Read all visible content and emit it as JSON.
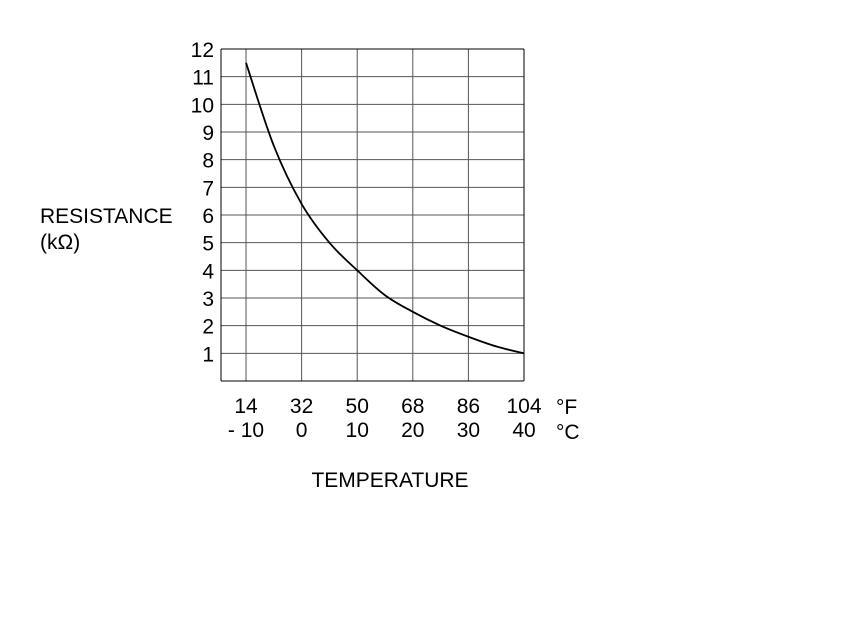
{
  "chart_data": {
    "type": "line",
    "ylabel_lines": [
      "RESISTANCE",
      "(kΩ)"
    ],
    "xlabel": "TEMPERATURE",
    "y_ticks": [
      "1",
      "2",
      "3",
      "4",
      "5",
      "6",
      "7",
      "8",
      "9",
      "10",
      "11",
      "12"
    ],
    "ylim": [
      0,
      12
    ],
    "x_ticks_f": [
      "14",
      "32",
      "50",
      "68",
      "86",
      "104"
    ],
    "x_ticks_c": [
      "- 10",
      "0",
      "10",
      "20",
      "30",
      "40"
    ],
    "x_unit_f": "°F",
    "x_unit_c": "°C",
    "xlim_c": [
      -14.5,
      40
    ],
    "grid": true,
    "series": [
      {
        "color": "#000000",
        "x": [
          -10,
          -5,
          0,
          5,
          10,
          15,
          20,
          25,
          30,
          35,
          40
        ],
        "y": [
          11.5,
          8.5,
          6.4,
          5.0,
          4.0,
          3.1,
          2.5,
          2.0,
          1.6,
          1.25,
          1.0
        ]
      }
    ]
  }
}
